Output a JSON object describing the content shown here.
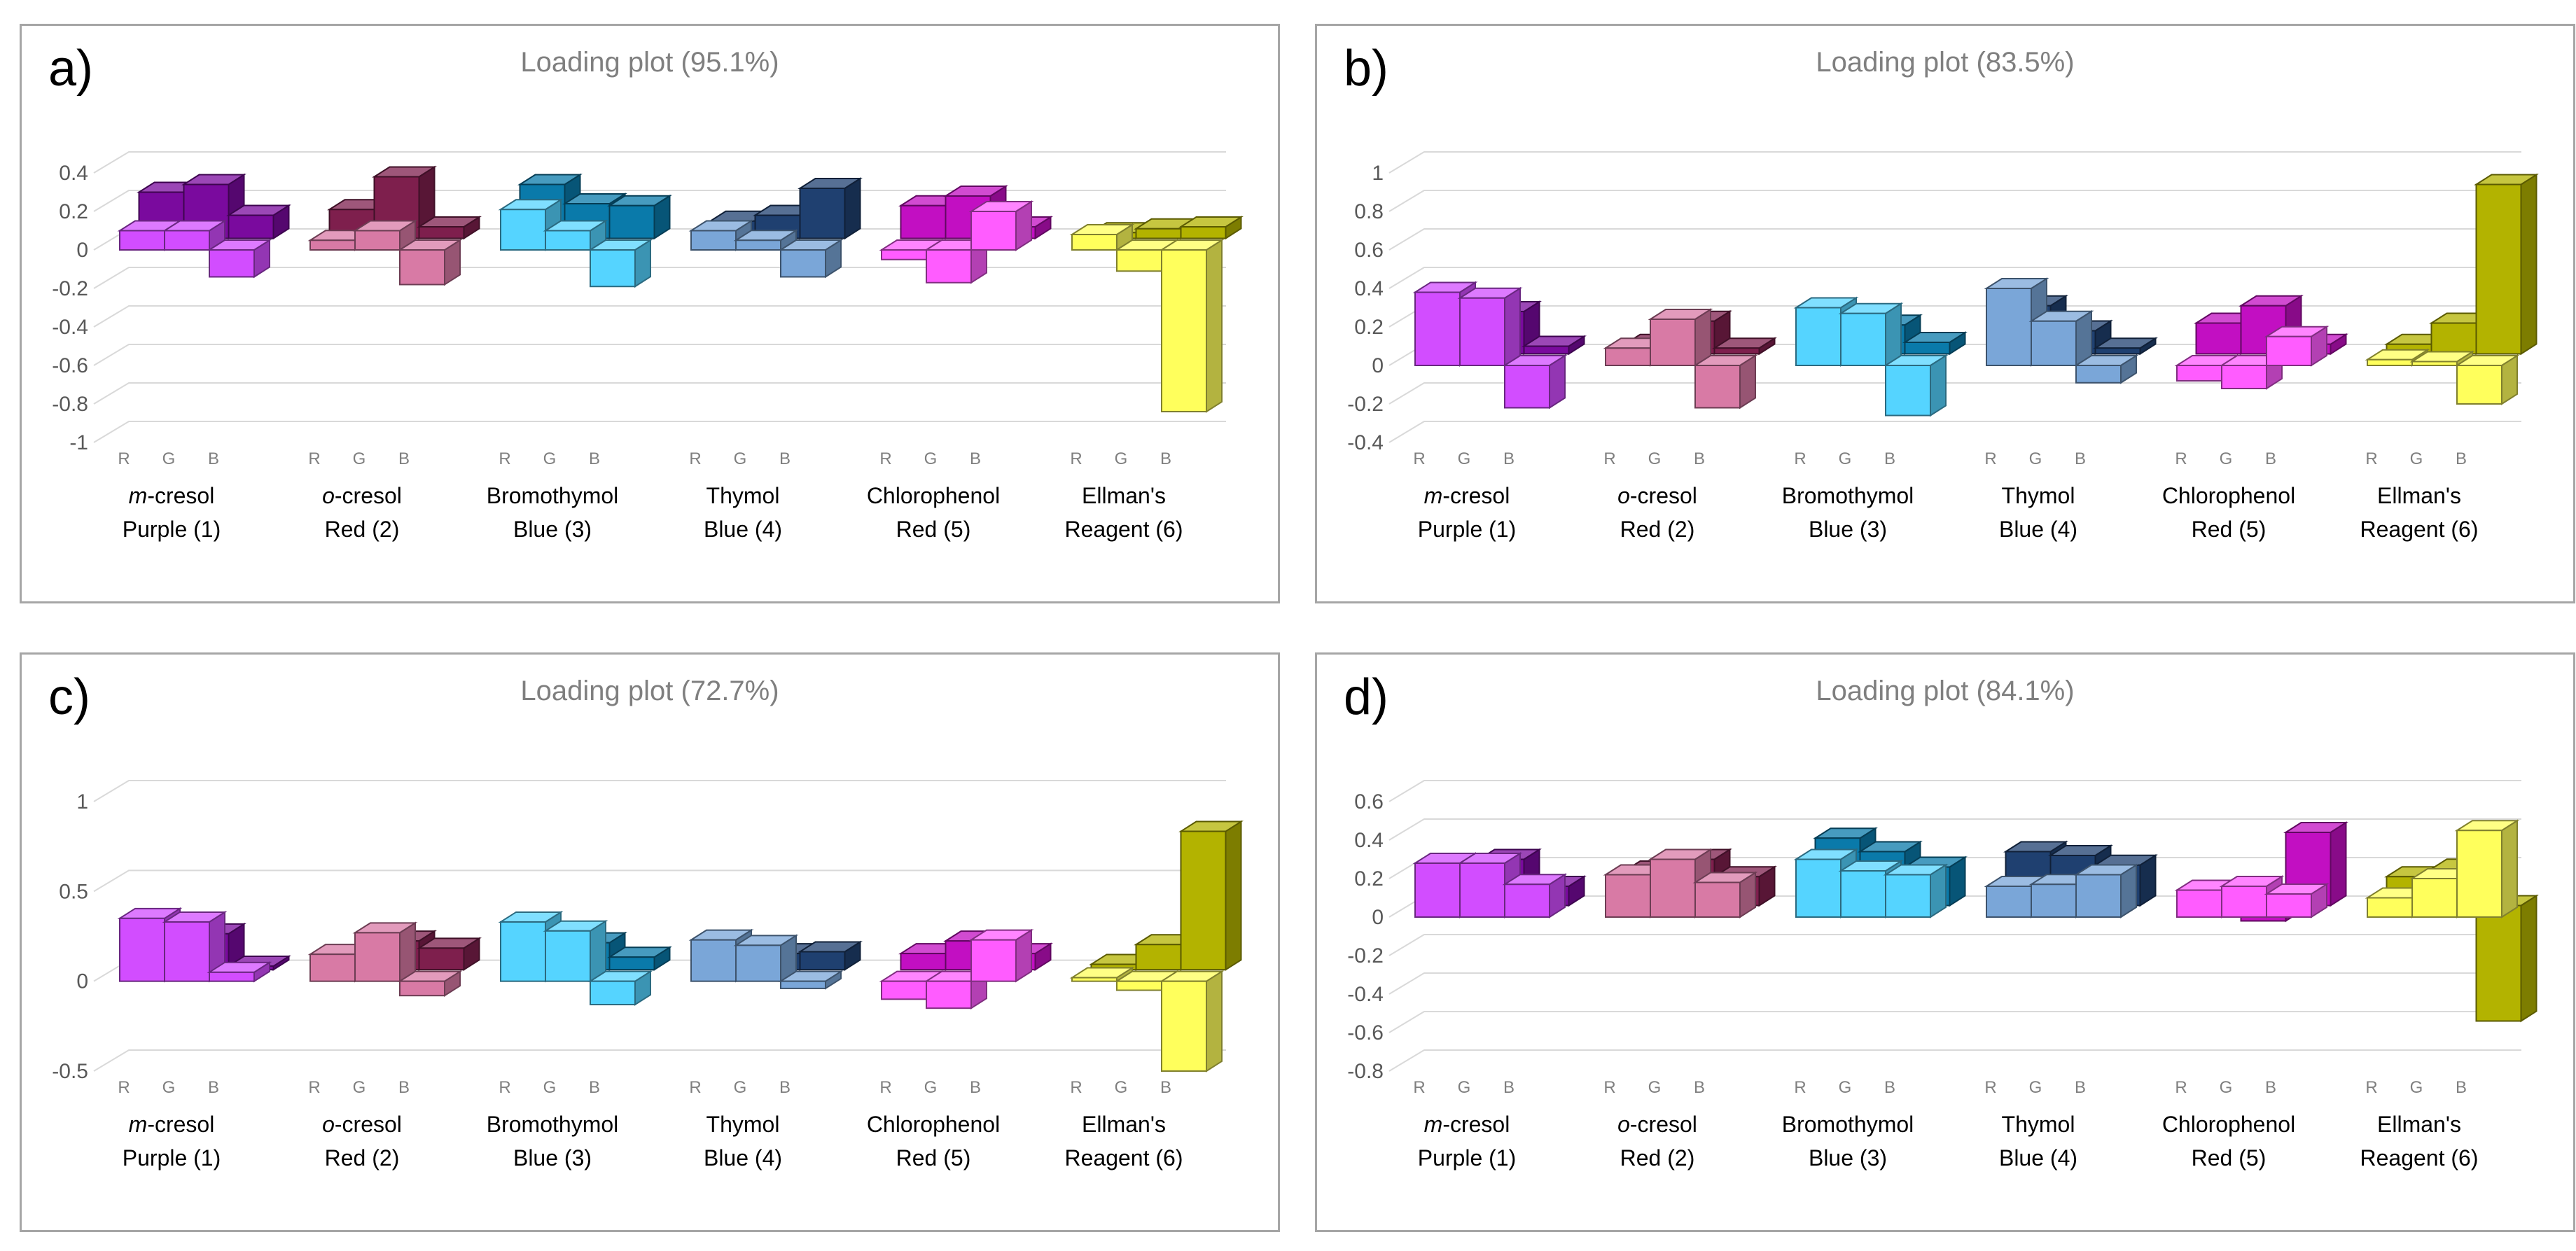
{
  "chart_data": [
    {
      "type": "bar",
      "panel_label": "a)",
      "title": "Loading plot (95.1%)",
      "ylim": [
        -1,
        0.4
      ],
      "yticks": [
        0.4,
        0.2,
        0,
        -0.2,
        -0.4,
        -0.6,
        -0.8,
        -1
      ],
      "grid": true,
      "categories": [
        {
          "prefix": "m",
          "line1": "-cresol",
          "line2": "Purple (1)",
          "light": "#d24dff",
          "dark": "#7a0a9e"
        },
        {
          "prefix": "o",
          "line1": "-cresol",
          "line2": "Red (2)",
          "light": "#d87aa5",
          "dark": "#7e1f4d"
        },
        {
          "prefix": "",
          "line1": "Bromothymol",
          "line2": "Blue (3)",
          "light": "#55d4ff",
          "dark": "#0a7aaa"
        },
        {
          "prefix": "",
          "line1": "Thymol",
          "line2": "Blue (4)",
          "light": "#7aa6d8",
          "dark": "#1f4070"
        },
        {
          "prefix": "",
          "line1": "Chlorophenol",
          "line2": "Red (5)",
          "light": "#ff5cff",
          "dark": "#c20fc2"
        },
        {
          "prefix": "",
          "line1": "Ellman's",
          "line2": "Reagent (6)",
          "light": "#ffff5c",
          "dark": "#b3b300"
        }
      ],
      "channels": [
        "R",
        "G",
        "B"
      ],
      "series": [
        {
          "values": [
            [
              0.1,
              0.1,
              -0.14
            ],
            [
              0.05,
              0.1,
              -0.18
            ],
            [
              0.21,
              0.1,
              -0.19
            ],
            [
              0.1,
              0.05,
              -0.14
            ],
            [
              -0.05,
              -0.17,
              0.2
            ],
            [
              0.08,
              -0.11,
              -0.84
            ]
          ]
        },
        {
          "values": [
            [
              0.24,
              0.28,
              0.12
            ],
            [
              0.15,
              0.32,
              0.06
            ],
            [
              0.28,
              0.18,
              0.17
            ],
            [
              0.09,
              0.12,
              0.26
            ],
            [
              0.17,
              0.22,
              0.06
            ],
            [
              0.03,
              0.05,
              0.06
            ]
          ]
        }
      ]
    },
    {
      "type": "bar",
      "panel_label": "b)",
      "title": "Loading plot (83.5%)",
      "ylim": [
        -0.4,
        1
      ],
      "yticks": [
        1,
        0.8,
        0.6,
        0.4,
        0.2,
        0,
        -0.2,
        -0.4
      ],
      "grid": true,
      "categories": [
        {
          "prefix": "m",
          "line1": "-cresol",
          "line2": "Purple (1)",
          "light": "#d24dff",
          "dark": "#7a0a9e"
        },
        {
          "prefix": "o",
          "line1": "-cresol",
          "line2": "Red (2)",
          "light": "#d87aa5",
          "dark": "#7e1f4d"
        },
        {
          "prefix": "",
          "line1": "Bromothymol",
          "line2": "Blue (3)",
          "light": "#55d4ff",
          "dark": "#0a7aaa"
        },
        {
          "prefix": "",
          "line1": "Thymol",
          "line2": "Blue (4)",
          "light": "#7aa6d8",
          "dark": "#1f4070"
        },
        {
          "prefix": "",
          "line1": "Chlorophenol",
          "line2": "Red (5)",
          "light": "#ff5cff",
          "dark": "#c20fc2"
        },
        {
          "prefix": "",
          "line1": "Ellman's",
          "line2": "Reagent (6)",
          "light": "#ffff5c",
          "dark": "#b3b300"
        }
      ],
      "channels": [
        "R",
        "G",
        "B"
      ],
      "series": [
        {
          "values": [
            [
              0.38,
              0.35,
              -0.22
            ],
            [
              0.09,
              0.24,
              -0.22
            ],
            [
              0.3,
              0.27,
              -0.26
            ],
            [
              0.4,
              0.23,
              -0.09
            ],
            [
              -0.08,
              -0.12,
              0.15
            ],
            [
              0.03,
              0.02,
              -0.2
            ]
          ]
        },
        {
          "values": [
            [
              0.25,
              0.22,
              0.04
            ],
            [
              0.05,
              0.17,
              0.03
            ],
            [
              0.18,
              0.15,
              0.06
            ],
            [
              0.25,
              0.12,
              0.03
            ],
            [
              0.16,
              0.25,
              0.05
            ],
            [
              0.05,
              0.16,
              0.88
            ]
          ]
        }
      ]
    },
    {
      "type": "bar",
      "panel_label": "c)",
      "title": "Loading plot (72.7%)",
      "ylim": [
        -0.5,
        1
      ],
      "yticks": [
        1,
        0.5,
        0,
        -0.5
      ],
      "grid": true,
      "categories": [
        {
          "prefix": "m",
          "line1": "-cresol",
          "line2": "Purple (1)",
          "light": "#d24dff",
          "dark": "#7a0a9e"
        },
        {
          "prefix": "o",
          "line1": "-cresol",
          "line2": "Red (2)",
          "light": "#d87aa5",
          "dark": "#7e1f4d"
        },
        {
          "prefix": "",
          "line1": "Bromothymol",
          "line2": "Blue (3)",
          "light": "#55d4ff",
          "dark": "#0a7aaa"
        },
        {
          "prefix": "",
          "line1": "Thymol",
          "line2": "Blue (4)",
          "light": "#7aa6d8",
          "dark": "#1f4070"
        },
        {
          "prefix": "",
          "line1": "Chlorophenol",
          "line2": "Red (5)",
          "light": "#ff5cff",
          "dark": "#c20fc2"
        },
        {
          "prefix": "",
          "line1": "Ellman's",
          "line2": "Reagent (6)",
          "light": "#ffff5c",
          "dark": "#b3b300"
        }
      ],
      "channels": [
        "R",
        "G",
        "B"
      ],
      "series": [
        {
          "values": [
            [
              0.35,
              0.33,
              0.05
            ],
            [
              0.15,
              0.27,
              -0.08
            ],
            [
              0.33,
              0.28,
              -0.13
            ],
            [
              0.23,
              0.2,
              -0.04
            ],
            [
              -0.1,
              -0.15,
              0.23
            ],
            [
              0.02,
              -0.05,
              -0.5
            ]
          ]
        },
        {
          "values": [
            [
              0.22,
              0.2,
              0.02
            ],
            [
              0.08,
              0.16,
              0.12
            ],
            [
              0.18,
              0.15,
              0.07
            ],
            [
              0.1,
              0.09,
              0.1
            ],
            [
              0.09,
              0.16,
              0.09
            ],
            [
              0.03,
              0.14,
              0.77
            ]
          ]
        }
      ]
    },
    {
      "type": "bar",
      "panel_label": "d)",
      "title": "Loading plot (84.1%)",
      "ylim": [
        -0.8,
        0.6
      ],
      "yticks": [
        0.6,
        0.4,
        0.2,
        0,
        -0.2,
        -0.4,
        -0.6,
        -0.8
      ],
      "grid": true,
      "categories": [
        {
          "prefix": "m",
          "line1": "-cresol",
          "line2": "Purple (1)",
          "light": "#d24dff",
          "dark": "#7a0a9e"
        },
        {
          "prefix": "o",
          "line1": "-cresol",
          "line2": "Red (2)",
          "light": "#d87aa5",
          "dark": "#7e1f4d"
        },
        {
          "prefix": "",
          "line1": "Bromothymol",
          "line2": "Blue (3)",
          "light": "#55d4ff",
          "dark": "#0a7aaa"
        },
        {
          "prefix": "",
          "line1": "Thymol",
          "line2": "Blue (4)",
          "light": "#7aa6d8",
          "dark": "#1f4070"
        },
        {
          "prefix": "",
          "line1": "Chlorophenol",
          "line2": "Red (5)",
          "light": "#ff5cff",
          "dark": "#c20fc2"
        },
        {
          "prefix": "",
          "line1": "Ellman's",
          "line2": "Reagent (6)",
          "light": "#ffff5c",
          "dark": "#b3b300"
        }
      ],
      "channels": [
        "R",
        "G",
        "B"
      ],
      "series": [
        {
          "values": [
            [
              0.28,
              0.28,
              0.17
            ],
            [
              0.22,
              0.3,
              0.18
            ],
            [
              0.3,
              0.24,
              0.22
            ],
            [
              0.16,
              0.17,
              0.22
            ],
            [
              0.14,
              0.16,
              0.12
            ],
            [
              0.1,
              0.2,
              0.45
            ]
          ]
        },
        {
          "values": [
            [
              0.22,
              0.24,
              0.1
            ],
            [
              0.18,
              0.24,
              0.15
            ],
            [
              0.35,
              0.28,
              0.2
            ],
            [
              0.28,
              0.26,
              0.21
            ],
            [
              -0.02,
              -0.08,
              0.38
            ],
            [
              0.15,
              0.19,
              -0.6
            ]
          ]
        }
      ]
    }
  ]
}
